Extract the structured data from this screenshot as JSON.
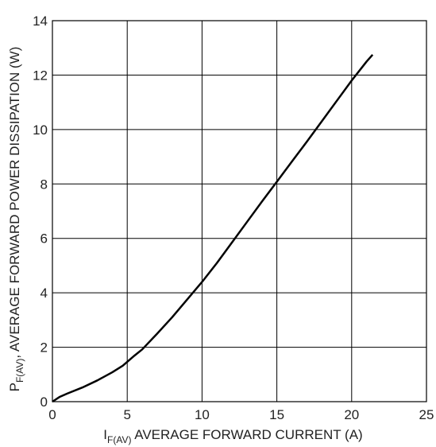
{
  "chart_data": {
    "type": "line",
    "title": "",
    "xlabel": {
      "main": "I",
      "sub": "F(AV)",
      "rest": " AVERAGE FORWARD CURRENT (A)"
    },
    "ylabel": {
      "main": "P",
      "sub": "F(AV)",
      "rest": ", AVERAGE FORWARD POWER DISSIPATION (W)"
    },
    "xlim": [
      0,
      25
    ],
    "ylim": [
      0,
      14
    ],
    "xticks": [
      0,
      5,
      10,
      15,
      20,
      25
    ],
    "yticks": [
      0,
      2,
      4,
      6,
      8,
      10,
      12,
      14
    ],
    "grid": true,
    "legend": "none",
    "line_color": "#000000",
    "grid_color": "#000000",
    "series": [
      {
        "x": [
          0,
          0.5,
          1,
          2,
          3,
          4,
          4.7,
          5.5,
          6,
          7,
          8,
          9,
          10,
          11,
          12,
          13,
          14,
          15,
          16,
          17,
          18,
          19,
          20,
          21,
          21.4
        ],
        "y": [
          0,
          0.18,
          0.3,
          0.52,
          0.78,
          1.08,
          1.32,
          1.7,
          1.92,
          2.5,
          3.1,
          3.75,
          4.4,
          5.1,
          5.85,
          6.6,
          7.35,
          8.08,
          8.82,
          9.55,
          10.3,
          11.05,
          11.8,
          12.5,
          12.75
        ]
      }
    ]
  }
}
